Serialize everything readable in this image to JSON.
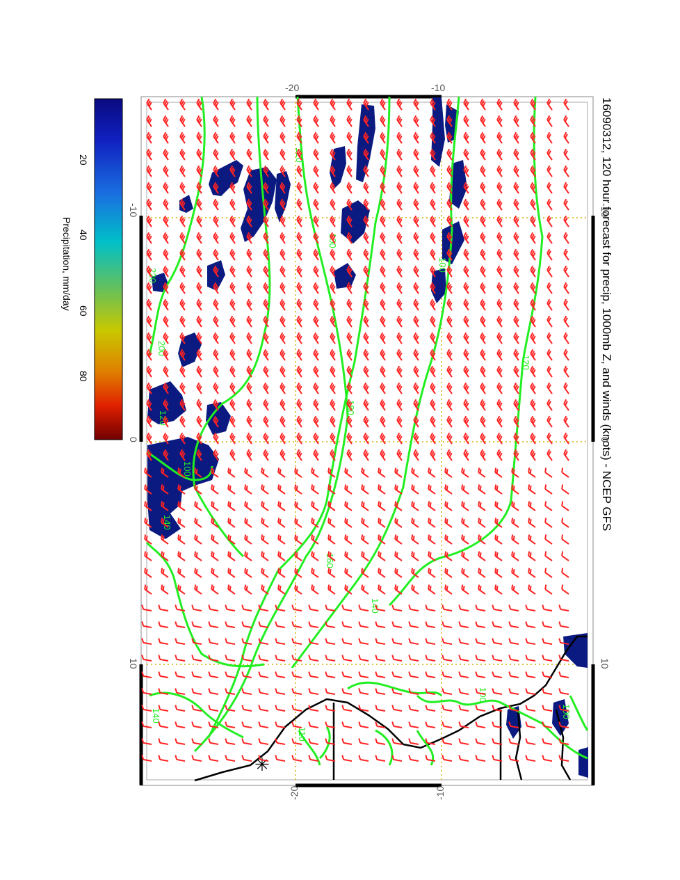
{
  "title": "16090312, 120 hour forecast for precip, 1000mb Z, and winds (knots) - NCEP GFS",
  "colorbar": {
    "label": "Precipitation, mm/day",
    "ticks": [
      "20",
      "40",
      "60",
      "80"
    ]
  },
  "axes": {
    "top_ticks": [
      "-20",
      "-10"
    ],
    "bottom_ticks": [
      "-20",
      "-10"
    ],
    "left_ticks": [
      "-10",
      "0",
      "10"
    ],
    "right_ticks": [
      "-10",
      "0",
      "10"
    ]
  },
  "contour_labels": [
    "120",
    "100",
    "120",
    "100",
    "180",
    "160",
    "140",
    "100",
    "140",
    "220",
    "200",
    "140",
    "120",
    "100",
    "110",
    "100"
  ],
  "colors": {
    "contour": "#22ee22",
    "barb": "#ff2222",
    "precip": "#0a1a80",
    "grid": "#d4b000",
    "coast": "#000000"
  }
}
